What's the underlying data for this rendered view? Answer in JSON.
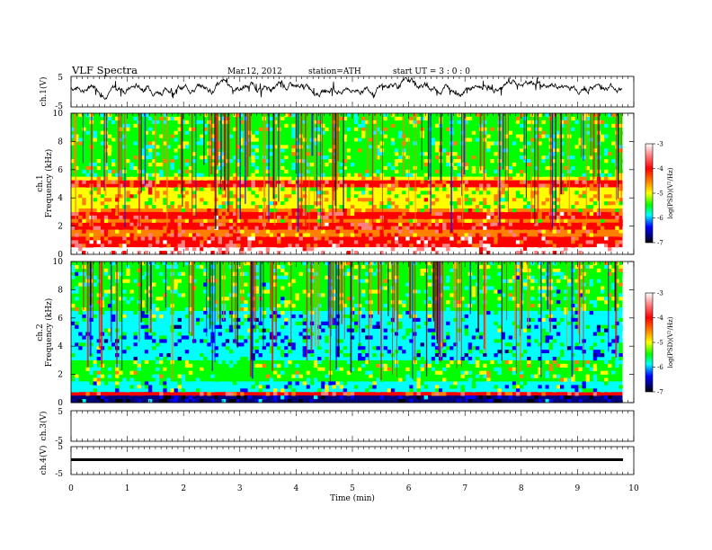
{
  "header": {
    "title": "VLF  Spectra",
    "date": "Mar.12, 2012",
    "station": "station=ATH",
    "start": "start  UT  =    3  : 0  : 0"
  },
  "colorbar": {
    "label": "log(PSD)(V²/Hz)",
    "ticks": [
      "-3",
      "-4",
      "-5",
      "-6",
      "-7"
    ],
    "colors": [
      "#ffffff",
      "#ff8080",
      "#ff0000",
      "#ff8000",
      "#ffff00",
      "#00ff00",
      "#00ffff",
      "#0000ff",
      "#000080",
      "#000000"
    ]
  },
  "chart_data": [
    {
      "id": "ch1-waveform",
      "type": "line",
      "ylabel": "ch.1(V)",
      "ylim": [
        -5,
        5
      ],
      "ytick_labels": [
        "5",
        "-5"
      ],
      "xlim": [
        0,
        10
      ],
      "x_end": 9.8,
      "series_mean": 1.5,
      "series_range": [
        -2.5,
        4.6
      ]
    },
    {
      "id": "ch1-spectrogram",
      "type": "heatmap",
      "title": "ch.1",
      "ylabel": "Frequency  (kHz)",
      "ylim": [
        0,
        10
      ],
      "ytick_labels": [
        "10",
        "8",
        "6",
        "4",
        "2",
        "0"
      ],
      "zlim": [
        -7,
        -3
      ],
      "xlim": [
        0,
        10
      ],
      "x_end": 9.8
    },
    {
      "id": "ch2-spectrogram",
      "type": "heatmap",
      "title": "ch.2",
      "ylabel": "Frequency  (kHz)",
      "ylim": [
        0,
        10
      ],
      "ytick_labels": [
        "10",
        "8",
        "6",
        "4",
        "2",
        "0"
      ],
      "zlim": [
        -7,
        -3
      ],
      "xlim": [
        0,
        10
      ],
      "x_end": 9.8
    },
    {
      "id": "ch3-waveform",
      "type": "line",
      "ylabel": "ch.3(V)",
      "ylim": [
        -5,
        5
      ],
      "ytick_labels": [
        "5",
        "-5"
      ],
      "xlim": [
        0,
        10
      ],
      "series_mean": null
    },
    {
      "id": "ch4-waveform",
      "type": "line",
      "ylabel": "ch.4(V)",
      "ylim": [
        -5,
        5
      ],
      "ytick_labels": [
        "5",
        "-5"
      ],
      "xlim": [
        0,
        10
      ],
      "x_end": 9.8,
      "series_mean": 0.0,
      "series_range": [
        -0.3,
        0.3
      ]
    }
  ],
  "xaxis": {
    "label": "Time  (min)",
    "ticks": [
      "0",
      "1",
      "2",
      "3",
      "4",
      "5",
      "6",
      "7",
      "8",
      "9",
      "10"
    ]
  }
}
